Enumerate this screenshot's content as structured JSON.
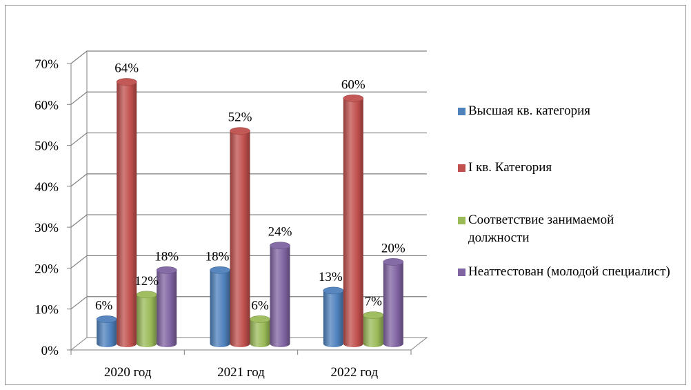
{
  "chart_data": {
    "type": "bar",
    "categories": [
      "2020 год",
      "2021 год",
      "2022 год"
    ],
    "series": [
      {
        "name": "Высшая кв. категория",
        "values": [
          6,
          18,
          13
        ],
        "labels": [
          "6%",
          "18%",
          "13%"
        ],
        "color": "#4f81bd"
      },
      {
        "name": "I кв. Категория",
        "values": [
          64,
          52,
          60
        ],
        "labels": [
          "64%",
          "52%",
          "60%"
        ],
        "color": "#c0504d"
      },
      {
        "name": "Соответствие занимаемой должности",
        "values": [
          12,
          6,
          7
        ],
        "labels": [
          "12%",
          "6%",
          "7%"
        ],
        "color": "#9bbb59"
      },
      {
        "name": "Неаттестован (молодой специалист)",
        "values": [
          18,
          24,
          20
        ],
        "labels": [
          "18%",
          "24%",
          "20%"
        ],
        "color": "#8064a2"
      }
    ],
    "yticks": [
      "0%",
      "10%",
      "20%",
      "30%",
      "40%",
      "50%",
      "60%",
      "70%"
    ],
    "ylim": [
      0,
      70
    ],
    "grid": true,
    "legend_position": "right",
    "style": "3d-cylinder"
  }
}
